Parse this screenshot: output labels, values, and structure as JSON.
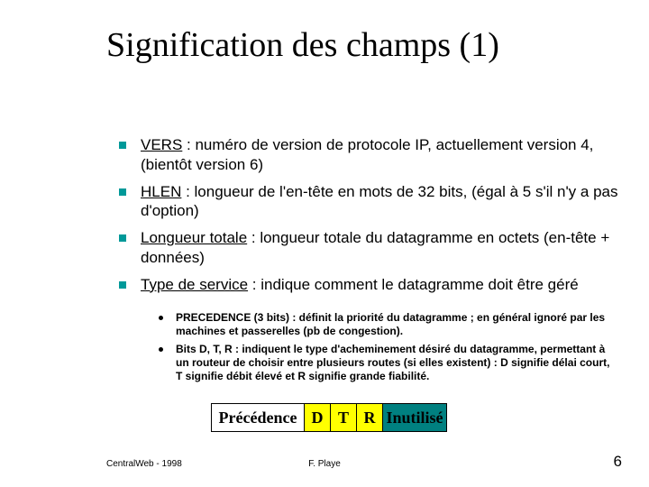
{
  "title": "Signification des champs (1)",
  "bullets": [
    {
      "term": "VERS",
      "text": " : numéro de version de protocole IP, actuellement version 4, (bientôt version 6)"
    },
    {
      "term": "HLEN",
      "text": " : longueur de l'en-tête en mots de 32 bits, (égal à 5 s'il n'y a pas d'option)"
    },
    {
      "term": "Longueur totale",
      "text": " : longueur totale du datagramme en octets (en-tête + données)"
    },
    {
      "term": "Type de service",
      "text": " : indique comment le datagramme doit être géré"
    }
  ],
  "subs": [
    "PRECEDENCE (3 bits) : définit la priorité du datagramme ; en général ignoré par les machines et passerelles (pb de congestion).",
    "Bits D, T, R : indiquent le type d'acheminement désiré du datagramme, permettant à un routeur de choisir entre plusieurs routes (si elles existent) : D signifie délai court, T signifie débit élevé et R signifie grande fiabilité."
  ],
  "tos": {
    "precedence": "Précédence",
    "d": "D",
    "t": "T",
    "r": "R",
    "unused": "Inutilisé",
    "colors": {
      "bg_white": "#ffffff",
      "bg_yellow": "#ffff00",
      "bg_teal": "#008080",
      "border": "#000000"
    }
  },
  "footer": {
    "left": "CentralWeb - 1998",
    "center": "F. Playe",
    "page": "6"
  },
  "style": {
    "accent_teal": "#009999",
    "title_fontsize": 38,
    "body_fontsize": 17,
    "sub_fontsize": 12
  }
}
